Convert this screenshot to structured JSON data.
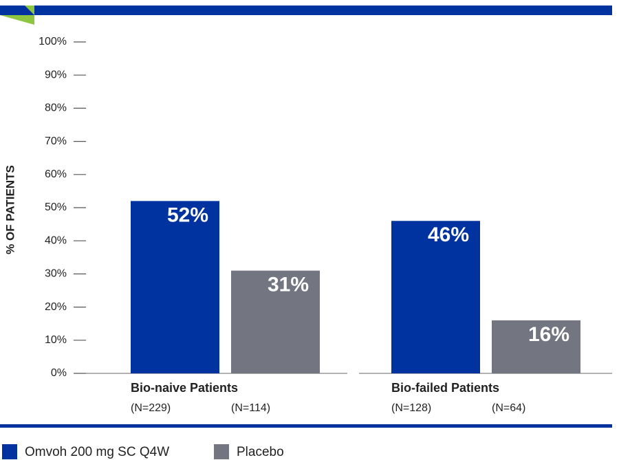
{
  "chart_data": {
    "type": "bar",
    "y_label": "% OF PATIENTS",
    "categories": [
      "Bio-naive Patients",
      "Bio-failed Patients"
    ],
    "series": [
      {
        "name": "Omvoh 200 mg SC Q4W",
        "color": "#0033a0",
        "values": [
          52,
          46
        ],
        "value_labels": [
          "52%",
          "46%"
        ],
        "n_labels": [
          "(N=229)",
          "(N=128)"
        ]
      },
      {
        "name": "Placebo",
        "color": "#737580",
        "values": [
          31,
          16
        ],
        "value_labels": [
          "31%",
          "16%"
        ],
        "n_labels": [
          "(N=114)",
          "(N=64)"
        ]
      }
    ],
    "ylim": [
      0,
      100
    ],
    "yticks": [
      {
        "value": 0,
        "label": "0%"
      },
      {
        "value": 10,
        "label": "10%"
      },
      {
        "value": 20,
        "label": "20%"
      },
      {
        "value": 30,
        "label": "30%"
      },
      {
        "value": 40,
        "label": "40%"
      },
      {
        "value": 50,
        "label": "50%"
      },
      {
        "value": 60,
        "label": "60%"
      },
      {
        "value": 70,
        "label": "70%"
      },
      {
        "value": 80,
        "label": "80%"
      },
      {
        "value": 90,
        "label": "90%"
      },
      {
        "value": 100,
        "label": "100%"
      }
    ]
  }
}
